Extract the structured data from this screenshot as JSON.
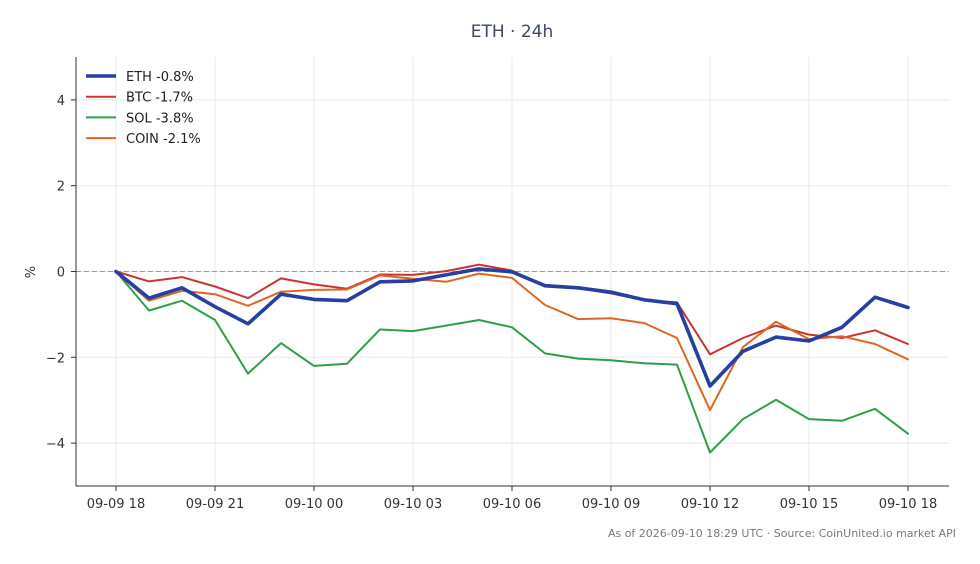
{
  "chart_data": {
    "type": "line",
    "title": "ETH · 24h",
    "ylabel": "%",
    "xlabel": "",
    "ylim": [
      -5,
      5
    ],
    "yticks": [
      4,
      2,
      0,
      -2,
      -4
    ],
    "x_tick_labels": [
      "09-09 18",
      "09-09 21",
      "09-10 00",
      "09-10 03",
      "09-10 06",
      "09-10 09",
      "09-10 12",
      "09-10 15",
      "09-10 18"
    ],
    "x_tick_index": [
      0,
      3,
      6,
      9,
      12,
      15,
      18,
      21,
      24
    ],
    "x_count": 25,
    "zero_line": true,
    "grid": true,
    "legend_position": "top-left",
    "series": [
      {
        "name": "ETH -0.8%",
        "color": "#2540a0",
        "emphasis": true,
        "values": [
          0.0,
          -0.62,
          -0.38,
          -0.82,
          -1.22,
          -0.53,
          -0.65,
          -0.68,
          -0.24,
          -0.22,
          -0.08,
          0.06,
          -0.01,
          -0.33,
          -0.38,
          -0.48,
          -0.66,
          -0.75,
          -2.67,
          -1.86,
          -1.53,
          -1.62,
          -1.3,
          -0.6,
          -0.84
        ]
      },
      {
        "name": "BTC -1.7%",
        "color": "#cc3333",
        "values": [
          0.0,
          -0.23,
          -0.13,
          -0.35,
          -0.62,
          -0.16,
          -0.3,
          -0.4,
          -0.07,
          -0.08,
          0.01,
          0.16,
          0.02,
          -0.35,
          -0.39,
          -0.51,
          -0.67,
          -0.72,
          -1.93,
          -1.55,
          -1.26,
          -1.47,
          -1.55,
          -1.37,
          -1.69
        ]
      },
      {
        "name": "SOL -3.8%",
        "color": "#2e9e4a",
        "values": [
          0.0,
          -0.91,
          -0.68,
          -1.13,
          -2.38,
          -1.67,
          -2.2,
          -2.15,
          -1.35,
          -1.39,
          -1.26,
          -1.13,
          -1.3,
          -1.91,
          -2.03,
          -2.07,
          -2.14,
          -2.17,
          -4.22,
          -3.44,
          -2.99,
          -3.44,
          -3.48,
          -3.2,
          -3.78
        ]
      },
      {
        "name": "COIN -2.1%",
        "color": "#dd6622",
        "values": [
          0.0,
          -0.68,
          -0.45,
          -0.53,
          -0.8,
          -0.47,
          -0.43,
          -0.42,
          -0.09,
          -0.17,
          -0.24,
          -0.05,
          -0.15,
          -0.78,
          -1.11,
          -1.09,
          -1.2,
          -1.55,
          -3.23,
          -1.76,
          -1.17,
          -1.58,
          -1.51,
          -1.69,
          -2.05
        ]
      }
    ],
    "footer": "As of 2026-09-10 18:29 UTC · Source: CoinUnited.io market API"
  }
}
